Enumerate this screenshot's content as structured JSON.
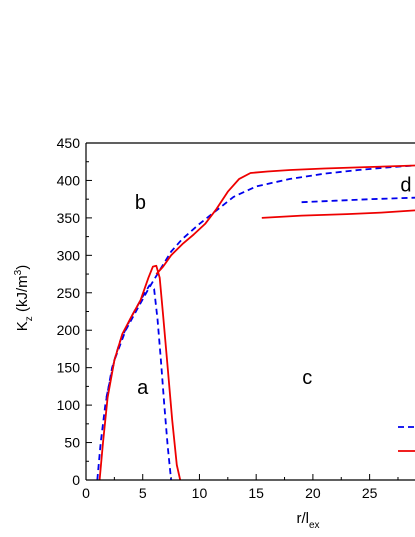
{
  "chart_data": {
    "type": "line",
    "title": "",
    "xlabel_main": "r/l",
    "xlabel_sub": "ex",
    "ylabel_main": "K",
    "ylabel_sub": "z",
    "ylabel_unit_pre": " (kJ/m",
    "ylabel_unit_sup": "3",
    "ylabel_unit_post": ")",
    "xlim": [
      0,
      29
    ],
    "ylim": [
      0,
      450
    ],
    "x_ticks": [
      0,
      5,
      10,
      15,
      20,
      25
    ],
    "y_ticks": [
      0,
      50,
      100,
      150,
      200,
      250,
      300,
      350,
      400,
      450
    ],
    "grid": false,
    "colors": {
      "dashed": "#0000ee",
      "solid": "#ee0000",
      "axis": "#000000"
    },
    "region_labels": [
      {
        "text": "a",
        "x": 5.0,
        "y": 115
      },
      {
        "text": "b",
        "x": 4.8,
        "y": 362
      },
      {
        "text": "c",
        "x": 19.5,
        "y": 128
      },
      {
        "text": "d",
        "x": 28.2,
        "y": 385
      }
    ],
    "series": [
      {
        "style": "dashed",
        "x": [
          1.0,
          1.3,
          1.7,
          2.3,
          3.0,
          4.0,
          5.0,
          5.6,
          6.0,
          6.3,
          6.6,
          6.9,
          7.2,
          7.5
        ],
        "y": [
          0,
          50,
          100,
          150,
          185,
          218,
          245,
          260,
          255,
          215,
          160,
          100,
          45,
          0
        ]
      },
      {
        "style": "dashed",
        "x": [
          1.8,
          2.5,
          3.5,
          4.5,
          5.5,
          6.5,
          7.5,
          8.5,
          10,
          11.5,
          13,
          15,
          18,
          21,
          24,
          27,
          29
        ],
        "y": [
          110,
          160,
          200,
          228,
          255,
          280,
          305,
          322,
          342,
          360,
          378,
          392,
          402,
          409,
          414,
          418,
          420
        ]
      },
      {
        "style": "dashed",
        "x": [
          19,
          22,
          25,
          29
        ],
        "y": [
          371,
          373,
          375,
          377
        ]
      },
      {
        "style": "solid",
        "x": [
          1.2,
          1.5,
          1.9,
          2.5,
          3.2,
          4.0,
          4.8,
          5.5,
          5.9,
          6.2,
          6.5,
          6.8,
          7.2,
          7.6,
          8.0,
          8.3
        ],
        "y": [
          0,
          50,
          110,
          160,
          195,
          218,
          240,
          270,
          285,
          286,
          270,
          220,
          150,
          80,
          20,
          0
        ]
      },
      {
        "style": "solid",
        "x": [
          6.2,
          6.8,
          7.5,
          8.5,
          9.5,
          10.5,
          11.5,
          12.5,
          13.5,
          14.5,
          16,
          18,
          21,
          25,
          29
        ],
        "y": [
          275,
          285,
          300,
          315,
          328,
          342,
          362,
          385,
          402,
          410,
          412,
          414,
          416,
          418,
          420
        ]
      },
      {
        "style": "solid",
        "x": [
          15.5,
          19,
          23,
          26,
          29
        ],
        "y": [
          350,
          353,
          355,
          357,
          360
        ]
      }
    ],
    "legend_styles": [
      "dashed",
      "solid"
    ]
  }
}
